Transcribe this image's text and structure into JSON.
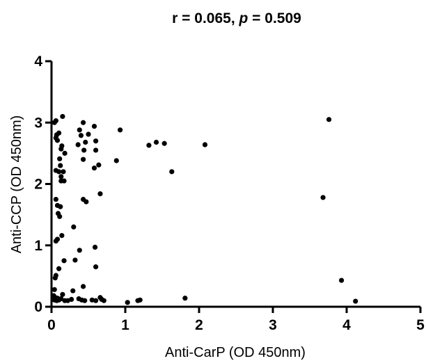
{
  "chart_data": {
    "type": "scatter",
    "title": "r = 0.065, p = 0.509",
    "title_parts": {
      "r_text": "r = 0.065, ",
      "p_symbol": "p",
      "p_text": " = 0.509"
    },
    "xlabel": "Anti-CarP (OD 450nm)",
    "ylabel": "Anti-CCP (OD 450nm)",
    "xlim": [
      0,
      5
    ],
    "ylim": [
      0,
      4
    ],
    "xticks": [
      "0",
      "1",
      "2",
      "3",
      "4",
      "5"
    ],
    "yticks": [
      "0",
      "1",
      "2",
      "3",
      "4"
    ],
    "grid": false,
    "marker_color": "#000000",
    "points": [
      {
        "x": 0.04,
        "y": 3.0
      },
      {
        "x": 0.06,
        "y": 3.03
      },
      {
        "x": 0.15,
        "y": 3.1
      },
      {
        "x": 0.07,
        "y": 2.8
      },
      {
        "x": 0.1,
        "y": 2.83
      },
      {
        "x": 0.06,
        "y": 2.75
      },
      {
        "x": 0.08,
        "y": 2.71
      },
      {
        "x": 0.14,
        "y": 2.62
      },
      {
        "x": 0.13,
        "y": 2.57
      },
      {
        "x": 0.18,
        "y": 2.5
      },
      {
        "x": 0.11,
        "y": 2.41
      },
      {
        "x": 0.12,
        "y": 2.3
      },
      {
        "x": 0.06,
        "y": 2.22
      },
      {
        "x": 0.1,
        "y": 2.2
      },
      {
        "x": 0.16,
        "y": 2.2
      },
      {
        "x": 0.13,
        "y": 2.12
      },
      {
        "x": 0.13,
        "y": 2.05
      },
      {
        "x": 0.17,
        "y": 2.05
      },
      {
        "x": 0.06,
        "y": 1.75
      },
      {
        "x": 0.08,
        "y": 1.65
      },
      {
        "x": 0.12,
        "y": 1.63
      },
      {
        "x": 0.09,
        "y": 1.52
      },
      {
        "x": 0.11,
        "y": 1.47
      },
      {
        "x": 0.3,
        "y": 1.3
      },
      {
        "x": 0.14,
        "y": 1.16
      },
      {
        "x": 0.08,
        "y": 1.1
      },
      {
        "x": 0.06,
        "y": 1.07
      },
      {
        "x": 0.38,
        "y": 0.92
      },
      {
        "x": 0.17,
        "y": 0.75
      },
      {
        "x": 0.32,
        "y": 0.76
      },
      {
        "x": 0.1,
        "y": 0.62
      },
      {
        "x": 0.06,
        "y": 0.51
      },
      {
        "x": 0.05,
        "y": 0.47
      },
      {
        "x": 0.43,
        "y": 0.33
      },
      {
        "x": 0.04,
        "y": 0.28
      },
      {
        "x": 0.29,
        "y": 0.26
      },
      {
        "x": 0.15,
        "y": 0.2
      },
      {
        "x": 0.03,
        "y": 0.18
      },
      {
        "x": 0.05,
        "y": 0.15
      },
      {
        "x": 0.08,
        "y": 0.14
      },
      {
        "x": 0.13,
        "y": 0.13
      },
      {
        "x": 0.04,
        "y": 0.11
      },
      {
        "x": 0.07,
        "y": 0.1
      },
      {
        "x": 0.1,
        "y": 0.11
      },
      {
        "x": 0.18,
        "y": 0.1
      },
      {
        "x": 0.22,
        "y": 0.1
      },
      {
        "x": 0.27,
        "y": 0.12
      },
      {
        "x": 0.37,
        "y": 0.13
      },
      {
        "x": 0.41,
        "y": 0.11
      },
      {
        "x": 0.45,
        "y": 0.1
      },
      {
        "x": 0.55,
        "y": 0.11
      },
      {
        "x": 0.6,
        "y": 0.1
      },
      {
        "x": 0.66,
        "y": 0.15
      },
      {
        "x": 0.68,
        "y": 0.12
      },
      {
        "x": 0.71,
        "y": 0.1
      },
      {
        "x": 0.43,
        "y": 3.0
      },
      {
        "x": 0.58,
        "y": 2.94
      },
      {
        "x": 0.38,
        "y": 2.88
      },
      {
        "x": 0.5,
        "y": 2.81
      },
      {
        "x": 0.4,
        "y": 2.79
      },
      {
        "x": 0.46,
        "y": 2.68
      },
      {
        "x": 0.36,
        "y": 2.64
      },
      {
        "x": 0.6,
        "y": 2.7
      },
      {
        "x": 0.6,
        "y": 2.55
      },
      {
        "x": 0.44,
        "y": 2.55
      },
      {
        "x": 0.43,
        "y": 2.4
      },
      {
        "x": 0.58,
        "y": 2.26
      },
      {
        "x": 0.64,
        "y": 2.31
      },
      {
        "x": 0.43,
        "y": 1.75
      },
      {
        "x": 0.47,
        "y": 1.71
      },
      {
        "x": 0.66,
        "y": 1.84
      },
      {
        "x": 0.59,
        "y": 0.97
      },
      {
        "x": 0.6,
        "y": 0.65
      },
      {
        "x": 0.93,
        "y": 2.88
      },
      {
        "x": 0.88,
        "y": 2.38
      },
      {
        "x": 1.32,
        "y": 2.63
      },
      {
        "x": 1.42,
        "y": 2.68
      },
      {
        "x": 1.53,
        "y": 2.66
      },
      {
        "x": 1.63,
        "y": 2.2
      },
      {
        "x": 2.08,
        "y": 2.64
      },
      {
        "x": 3.76,
        "y": 3.05
      },
      {
        "x": 3.68,
        "y": 1.78
      },
      {
        "x": 3.93,
        "y": 0.43
      },
      {
        "x": 4.12,
        "y": 0.09
      },
      {
        "x": 1.03,
        "y": 0.07
      },
      {
        "x": 1.17,
        "y": 0.1
      },
      {
        "x": 1.2,
        "y": 0.11
      },
      {
        "x": 1.81,
        "y": 0.14
      }
    ]
  }
}
